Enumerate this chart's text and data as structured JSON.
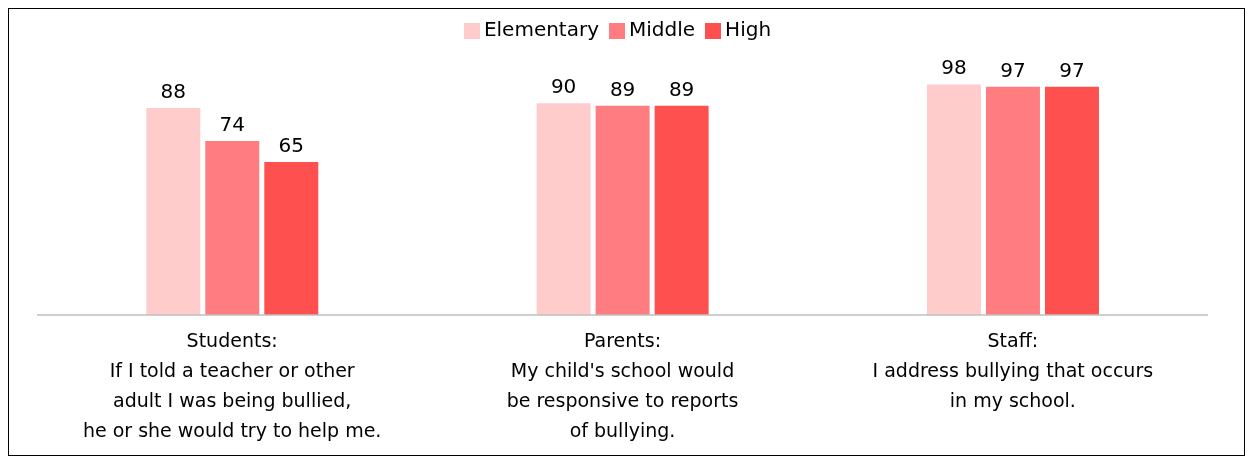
{
  "chart_data": {
    "type": "bar",
    "categories": [
      "Students:\nIf I told a teacher or other\nadult I was being bullied,\nhe or she would try to help me.",
      "Parents:\nMy child's school would\nbe responsive to reports\nof bullying.",
      "Staff:\nI address bullying that occurs\nin my school."
    ],
    "series": [
      {
        "name": "Elementary",
        "color": "#ffcccc",
        "values": [
          88,
          90,
          98
        ]
      },
      {
        "name": "Middle",
        "color": "#ff7c80",
        "values": [
          74,
          89,
          97
        ]
      },
      {
        "name": "High",
        "color": "#ff5050",
        "values": [
          65,
          89,
          97
        ]
      }
    ],
    "data_labels": true,
    "legend": "top",
    "grid": false
  }
}
